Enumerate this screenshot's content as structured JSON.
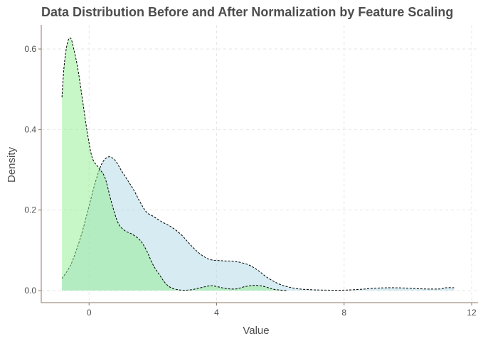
{
  "chart_data": {
    "type": "area",
    "title": "Data Distribution Before and After Normalization by Feature Scaling",
    "xlabel": "Value",
    "ylabel": "Density",
    "xlim": [
      -1.5,
      12.2
    ],
    "ylim": [
      -0.03,
      0.66
    ],
    "x_ticks": [
      "0",
      "4",
      "8",
      "12"
    ],
    "x_tick_values": [
      0,
      4,
      8,
      12
    ],
    "y_ticks": [
      "0.0",
      "0.2",
      "0.4",
      "0.6"
    ],
    "y_tick_values": [
      0.0,
      0.2,
      0.4,
      0.6
    ],
    "grid": true,
    "legend": "none",
    "series": [
      {
        "fill": "#add8e6",
        "points": [
          [
            -0.85,
            0.03
          ],
          [
            -0.6,
            0.06
          ],
          [
            -0.4,
            0.1
          ],
          [
            -0.2,
            0.15
          ],
          [
            0.0,
            0.21
          ],
          [
            0.2,
            0.27
          ],
          [
            0.4,
            0.315
          ],
          [
            0.6,
            0.332
          ],
          [
            0.8,
            0.325
          ],
          [
            1.0,
            0.3
          ],
          [
            1.2,
            0.275
          ],
          [
            1.4,
            0.25
          ],
          [
            1.6,
            0.22
          ],
          [
            1.8,
            0.195
          ],
          [
            2.0,
            0.185
          ],
          [
            2.3,
            0.17
          ],
          [
            2.6,
            0.157
          ],
          [
            2.9,
            0.138
          ],
          [
            3.2,
            0.112
          ],
          [
            3.5,
            0.09
          ],
          [
            3.8,
            0.077
          ],
          [
            4.2,
            0.074
          ],
          [
            4.6,
            0.072
          ],
          [
            5.0,
            0.064
          ],
          [
            5.3,
            0.05
          ],
          [
            5.6,
            0.032
          ],
          [
            6.0,
            0.015
          ],
          [
            6.5,
            0.005
          ],
          [
            7.0,
            0.002
          ],
          [
            7.5,
            0.001
          ],
          [
            8.0,
            0.001
          ],
          [
            8.5,
            0.003
          ],
          [
            9.0,
            0.006
          ],
          [
            9.5,
            0.007
          ],
          [
            10.0,
            0.006
          ],
          [
            10.5,
            0.004
          ],
          [
            11.0,
            0.004
          ],
          [
            11.2,
            0.007
          ],
          [
            11.45,
            0.007
          ]
        ]
      },
      {
        "fill": "#90ee90",
        "points": [
          [
            -0.85,
            0.48
          ],
          [
            -0.78,
            0.56
          ],
          [
            -0.68,
            0.615
          ],
          [
            -0.58,
            0.627
          ],
          [
            -0.48,
            0.6
          ],
          [
            -0.35,
            0.55
          ],
          [
            -0.2,
            0.47
          ],
          [
            -0.05,
            0.39
          ],
          [
            0.1,
            0.33
          ],
          [
            0.3,
            0.305
          ],
          [
            0.5,
            0.28
          ],
          [
            0.7,
            0.22
          ],
          [
            0.9,
            0.17
          ],
          [
            1.1,
            0.15
          ],
          [
            1.35,
            0.14
          ],
          [
            1.6,
            0.125
          ],
          [
            1.8,
            0.1
          ],
          [
            2.0,
            0.065
          ],
          [
            2.2,
            0.04
          ],
          [
            2.4,
            0.018
          ],
          [
            2.6,
            0.006
          ],
          [
            2.9,
            0.001
          ],
          [
            3.2,
            0.002
          ],
          [
            3.5,
            0.007
          ],
          [
            3.8,
            0.012
          ],
          [
            4.0,
            0.01
          ],
          [
            4.3,
            0.005
          ],
          [
            4.6,
            0.004
          ],
          [
            4.9,
            0.01
          ],
          [
            5.2,
            0.013
          ],
          [
            5.5,
            0.01
          ],
          [
            5.8,
            0.003
          ],
          [
            6.2,
            0.0
          ]
        ]
      }
    ]
  }
}
